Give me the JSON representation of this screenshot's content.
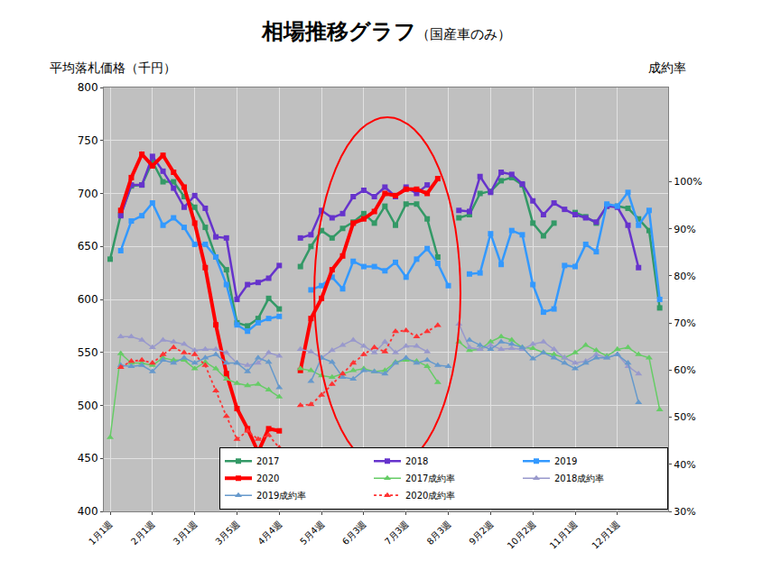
{
  "chart_data": {
    "type": "line",
    "title": "相場推移グラフ",
    "subtitle": "（国産車のみ）",
    "y_label": "平均落札価格（千円）",
    "y2_label": "成約率",
    "categories": [
      "1月1週",
      null,
      null,
      null,
      "2月1週",
      null,
      null,
      null,
      "3月1週",
      null,
      null,
      null,
      "3月5週",
      null,
      null,
      null,
      "4月4週",
      null,
      null,
      null,
      "5月4週",
      null,
      null,
      null,
      "6月3週",
      null,
      null,
      null,
      "7月3週",
      null,
      null,
      null,
      "8月3週",
      null,
      null,
      null,
      "9月2週",
      null,
      null,
      null,
      "10月2週",
      null,
      null,
      null,
      "11月1週",
      null,
      null,
      null,
      "12月1週",
      null,
      null,
      null,
      null
    ],
    "series": [
      {
        "name": "2017",
        "color": "#339966",
        "marker": "square",
        "line_style": "solid",
        "values": [
          638,
          680,
          707,
          708,
          730,
          711,
          711,
          697,
          687,
          668,
          640,
          628,
          578,
          575,
          582,
          601,
          591,
          null,
          631,
          650,
          665,
          658,
          667,
          673,
          681,
          672,
          688,
          670,
          690,
          690,
          676,
          640,
          null,
          677,
          680,
          700,
          702,
          712,
          715,
          708,
          672,
          660,
          672,
          null,
          682,
          678,
          672,
          688,
          688,
          686,
          676,
          665,
          592
        ]
      },
      {
        "name": "2018",
        "color": "#6633cc",
        "marker": "square",
        "line_style": "solid",
        "values": [
          null,
          679,
          708,
          708,
          735,
          721,
          705,
          687,
          698,
          686,
          659,
          658,
          600,
          614,
          616,
          620,
          632,
          null,
          658,
          661,
          684,
          677,
          681,
          697,
          703,
          697,
          706,
          697,
          706,
          700,
          708,
          null,
          null,
          684,
          683,
          716,
          701,
          720,
          718,
          709,
          693,
          680,
          691,
          685,
          680,
          677,
          673,
          688,
          687,
          670,
          630,
          null,
          null
        ]
      },
      {
        "name": "2019",
        "color": "#3399ff",
        "marker": "square",
        "line_style": "solid",
        "values": [
          null,
          646,
          674,
          679,
          691,
          670,
          677,
          668,
          652,
          652,
          640,
          614,
          576,
          570,
          578,
          582,
          584,
          null,
          null,
          609,
          613,
          621,
          610,
          636,
          631,
          631,
          627,
          635,
          621,
          638,
          648,
          634,
          613,
          null,
          624,
          625,
          662,
          633,
          665,
          661,
          614,
          588,
          591,
          632,
          631,
          652,
          645,
          690,
          688,
          701,
          670,
          684,
          600
        ]
      },
      {
        "name": "2020",
        "color": "#ff0000",
        "marker": "square",
        "line_style": "thick",
        "values": [
          null,
          684,
          715,
          737,
          726,
          736,
          720,
          706,
          672,
          630,
          576,
          530,
          497,
          478,
          456,
          478,
          476,
          null,
          533,
          582,
          601,
          628,
          641,
          672,
          676,
          683,
          700,
          698,
          704,
          704,
          700,
          714,
          null,
          null,
          null,
          null,
          null,
          null,
          null,
          null,
          null,
          null,
          null,
          null,
          null,
          null,
          null,
          null,
          null,
          null,
          null,
          null,
          null
        ]
      },
      {
        "name": "2017成約率",
        "color": "#66cc66",
        "marker": "triangle",
        "line_style": "solid",
        "axis": "y2",
        "values": [
          45.7,
          63.5,
          61.5,
          61.5,
          61.0,
          62.6,
          62.1,
          62.1,
          60.3,
          61.7,
          60.3,
          58.1,
          57.2,
          56.7,
          57.0,
          55.8,
          54.3,
          null,
          60.3,
          59.9,
          58.8,
          58.5,
          59.2,
          59.9,
          60.3,
          59.7,
          59.9,
          61.7,
          62.1,
          61.9,
          60.8,
          57.4,
          null,
          66.0,
          64.2,
          64.4,
          66.0,
          67.1,
          66.4,
          64.8,
          64.6,
          63.7,
          63.3,
          62.6,
          63.7,
          65.3,
          64.2,
          63.0,
          64.4,
          64.8,
          63.3,
          62.6,
          51.6
        ]
      },
      {
        "name": "2018成約率",
        "color": "#9999cc",
        "marker": "triangle",
        "line_style": "solid",
        "axis": "y2",
        "values": [
          null,
          67.1,
          67.1,
          66.4,
          64.8,
          66.4,
          66.0,
          65.5,
          64.2,
          64.4,
          64.4,
          63.7,
          61.5,
          61.0,
          61.5,
          63.7,
          63.0,
          null,
          64.4,
          63.9,
          62.6,
          64.2,
          65.3,
          66.4,
          65.1,
          63.7,
          66.0,
          63.7,
          65.1,
          65.1,
          63.9,
          null,
          null,
          69.8,
          64.8,
          64.4,
          65.3,
          64.4,
          64.6,
          64.4,
          65.5,
          66.0,
          64.4,
          62.6,
          61.5,
          61.9,
          63.3,
          62.6,
          63.3,
          60.8,
          59.2,
          null,
          null
        ]
      },
      {
        "name": "2019成約率",
        "color": "#6699cc",
        "marker": "triangle",
        "line_style": "solid",
        "axis": "y2",
        "values": [
          null,
          61.0,
          60.8,
          61.0,
          59.7,
          62.1,
          61.5,
          62.6,
          61.5,
          62.6,
          63.3,
          61.5,
          61.5,
          59.7,
          62.6,
          61.7,
          56.3,
          null,
          null,
          57.6,
          62.6,
          61.7,
          58.5,
          58.1,
          59.9,
          59.7,
          59.2,
          61.5,
          62.6,
          61.5,
          62.1,
          61.0,
          60.8,
          null,
          66.4,
          65.3,
          64.4,
          66.0,
          65.5,
          64.8,
          62.4,
          63.7,
          62.6,
          61.5,
          60.3,
          61.5,
          62.6,
          62.6,
          63.3,
          61.5,
          53.1,
          null,
          null
        ]
      },
      {
        "name": "2020成約率",
        "color": "#ff3333",
        "marker": "triangle",
        "line_style": "dotted",
        "axis": "y2",
        "values": [
          null,
          60.6,
          61.9,
          62.1,
          61.5,
          63.3,
          64.8,
          63.7,
          63.3,
          61.0,
          55.6,
          50.2,
          45.3,
          47.1,
          45.3,
          46.2,
          43.5,
          null,
          52.5,
          52.7,
          54.7,
          57.0,
          59.2,
          61.5,
          63.3,
          64.8,
          63.9,
          68.2,
          68.4,
          67.1,
          68.2,
          69.5,
          null,
          null,
          null,
          null,
          null,
          null,
          null,
          null,
          null,
          null,
          null,
          null,
          null,
          null,
          null,
          null,
          null,
          null,
          null,
          null,
          null
        ]
      }
    ],
    "ylim": [
      400,
      800
    ],
    "yticks": [
      400,
      450,
      500,
      550,
      600,
      650,
      700,
      750,
      800
    ],
    "y2lim": [
      30,
      120
    ],
    "y2ticks": [
      {
        "value": 30,
        "label": "30%"
      },
      {
        "value": 40,
        "label": "40%"
      },
      {
        "value": 50,
        "label": "50%"
      },
      {
        "value": 60,
        "label": "60%"
      },
      {
        "value": 70,
        "label": "70%"
      },
      {
        "value": 80,
        "label": "80%"
      },
      {
        "value": 90,
        "label": "90%"
      },
      {
        "value": 100,
        "label": "100%"
      }
    ],
    "grid": true,
    "legend": "lower right"
  }
}
